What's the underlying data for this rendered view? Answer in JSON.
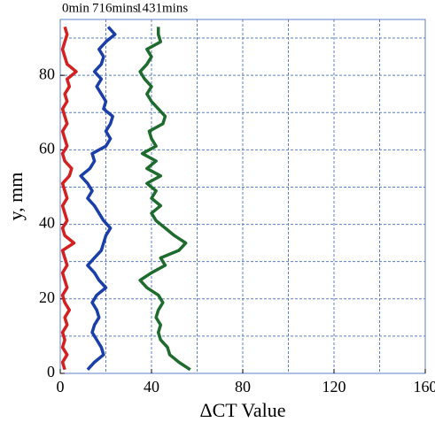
{
  "chart_data": {
    "type": "line",
    "xlabel": "ΔCT Value",
    "ylabel": "y, mm",
    "y": [
      1,
      3,
      5,
      7,
      9,
      11,
      13,
      15,
      17,
      19,
      21,
      23,
      25,
      27,
      29,
      31,
      33,
      35,
      37,
      39,
      41,
      43,
      45,
      47,
      49,
      51,
      53,
      55,
      57,
      59,
      61,
      63,
      65,
      67,
      69,
      71,
      73,
      75,
      77,
      79,
      81,
      83,
      85,
      87,
      89,
      91,
      93
    ],
    "series": [
      {
        "name": "0min",
        "color": "#d42020",
        "values": [
          2,
          1,
          3,
          1,
          2,
          1,
          3,
          2,
          4,
          2,
          1,
          3,
          2,
          1,
          3,
          2,
          1,
          6,
          2,
          1,
          3,
          2,
          1,
          3,
          2,
          1,
          4,
          5,
          2,
          1,
          3,
          2,
          1,
          3,
          2,
          1,
          3,
          2,
          4,
          3,
          7,
          3,
          2,
          1,
          2,
          3,
          2
        ]
      },
      {
        "name": "716mins",
        "color": "#1a3fa8",
        "values": [
          12,
          15,
          19,
          18,
          16,
          14,
          15,
          17,
          16,
          14,
          16,
          20,
          17,
          15,
          12,
          15,
          18,
          19,
          20,
          22,
          19,
          17,
          15,
          12,
          14,
          12,
          9,
          13,
          15,
          14,
          20,
          22,
          20,
          22,
          23,
          19,
          20,
          18,
          16,
          18,
          15,
          18,
          19,
          17,
          20,
          24,
          21
        ]
      },
      {
        "name": "1431mins",
        "color": "#1e6b2e",
        "values": [
          57,
          52,
          48,
          47,
          44,
          43,
          44,
          42,
          43,
          45,
          43,
          38,
          35,
          40,
          46,
          44,
          52,
          55,
          50,
          46,
          42,
          40,
          44,
          40,
          42,
          38,
          44,
          38,
          42,
          36,
          42,
          40,
          39,
          45,
          46,
          43,
          40,
          38,
          40,
          37,
          35,
          38,
          40,
          38,
          44,
          43,
          43
        ]
      }
    ],
    "xlim": [
      0,
      160
    ],
    "xticks": [
      0,
      40,
      80,
      120,
      160
    ],
    "xgrid": [
      20,
      40,
      60,
      80,
      100,
      120,
      140
    ],
    "ylim": [
      0,
      95
    ],
    "yticks": [
      0,
      20,
      40,
      60,
      80
    ],
    "ygrid": [
      10,
      20,
      30,
      40,
      50,
      60,
      70,
      80,
      90
    ],
    "grid": true
  }
}
